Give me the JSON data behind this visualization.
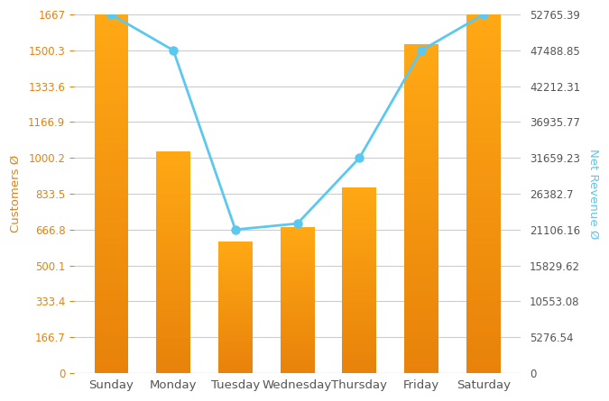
{
  "days": [
    "Sunday",
    "Monday",
    "Tuesday",
    "Wednesday",
    "Thursday",
    "Friday",
    "Saturday"
  ],
  "customers": [
    1667,
    1030,
    610,
    680,
    865,
    1530,
    1667
  ],
  "net_revenue": [
    52765.39,
    47488.85,
    21106.16,
    22000,
    31659.23,
    47488.85,
    52765.39
  ],
  "bar_color": "#E8820C",
  "line_color": "#5BC8F0",
  "marker_color": "#5BC8F0",
  "left_yticks": [
    0,
    166.7,
    333.4,
    500.1,
    666.8,
    833.5,
    1000.2,
    1166.9,
    1333.6,
    1500.3,
    1667
  ],
  "right_yticks": [
    0,
    5276.54,
    10553.08,
    15829.62,
    21106.16,
    26382.7,
    31659.23,
    36935.77,
    42212.31,
    47488.85,
    52765.39
  ],
  "left_ylabel": "Customers Ø",
  "right_ylabel": "Net Revenue Ø",
  "background_color": "#FFFFFF",
  "grid_color": "#CCCCCC",
  "left_axis_color": "#E8820C",
  "right_axis_color": "#5BC8F0",
  "tick_label_color": "#555555",
  "figwidth": 6.75,
  "figheight": 4.45,
  "dpi": 100
}
